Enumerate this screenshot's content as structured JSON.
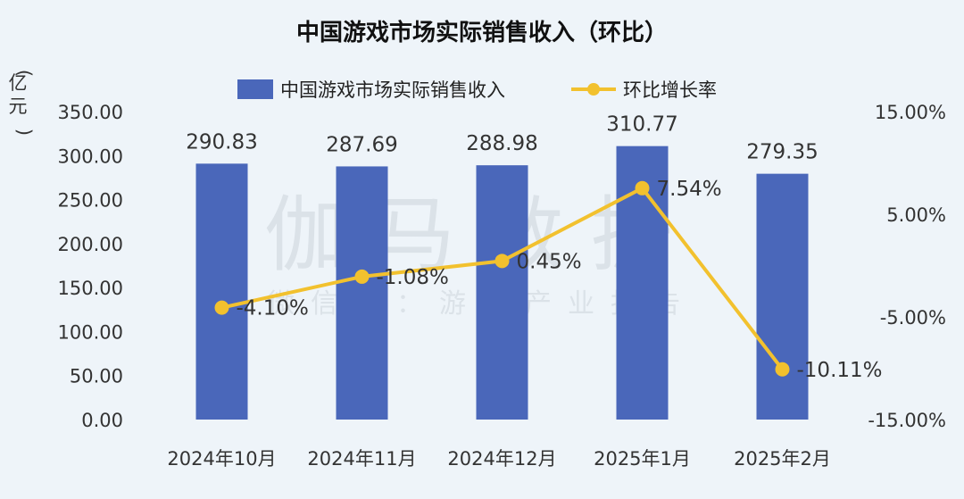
{
  "chart_data": {
    "type": "bar",
    "title": "中国游戏市场实际销售收入（环比）",
    "categories": [
      "2024年10月",
      "2024年11月",
      "2024年12月",
      "2025年1月",
      "2025年2月"
    ],
    "series": [
      {
        "name": "中国游戏市场实际销售收入",
        "type": "bar",
        "axis": "left",
        "color": "#4a67ba",
        "values": [
          290.83,
          287.69,
          288.98,
          310.77,
          279.35
        ],
        "labels": [
          "290.83",
          "287.69",
          "288.98",
          "310.77",
          "279.35"
        ]
      },
      {
        "name": "环比增长率",
        "type": "line",
        "axis": "right",
        "color": "#f2c12e",
        "values": [
          -4.1,
          -1.08,
          0.45,
          7.54,
          -10.11
        ],
        "labels": [
          "-4.10%",
          "-1.08%",
          "0.45%",
          "7.54%",
          "-10.11%"
        ]
      }
    ],
    "ylabel": "亿元",
    "ylim": [
      0,
      350
    ],
    "yticks": [
      "0.00",
      "50.00",
      "100.00",
      "150.00",
      "200.00",
      "250.00",
      "300.00",
      "350.00"
    ],
    "y2lim": [
      -15,
      15
    ],
    "y2ticks": [
      "-15.00%",
      "-5.00%",
      "5.00%",
      "15.00%"
    ],
    "legend_position": "top-center",
    "grid": false,
    "watermark": {
      "main": "伽马数据",
      "sub": "微信号：游戏产业报告"
    }
  }
}
